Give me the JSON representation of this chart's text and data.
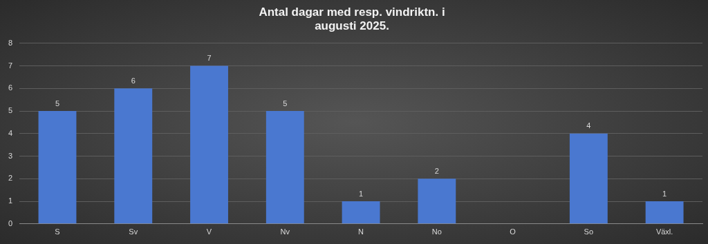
{
  "chart_data": {
    "type": "bar",
    "title": "Antal dagar med resp. vindriktn. i augusti 2025.",
    "categories": [
      "S",
      "Sv",
      "V",
      "Nv",
      "N",
      "No",
      "O",
      "So",
      "Växl."
    ],
    "values": [
      5,
      6,
      7,
      5,
      1,
      2,
      0,
      4,
      1
    ],
    "value_labels": [
      "5",
      "6",
      "7",
      "5",
      "1",
      "2",
      null,
      "4",
      "1"
    ],
    "color": "#4a78d0",
    "ylim": [
      0,
      8
    ],
    "yticks": [
      0,
      1,
      2,
      3,
      4,
      5,
      6,
      7,
      8
    ],
    "grid": "y",
    "legend": false
  }
}
